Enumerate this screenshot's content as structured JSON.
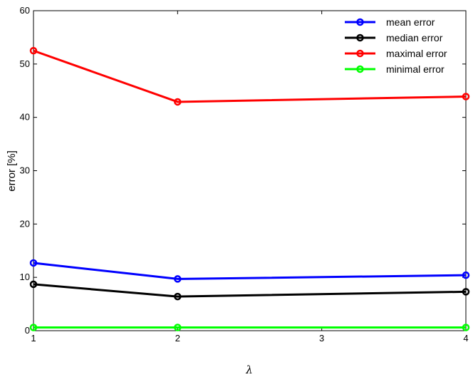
{
  "chart_data": {
    "type": "line",
    "title": "",
    "xlabel": "λ",
    "ylabel": "error [%]",
    "x": [
      1,
      2,
      4
    ],
    "xlim": [
      1,
      4
    ],
    "ylim": [
      0,
      60
    ],
    "xticks": [
      "1",
      "2",
      "3",
      "4"
    ],
    "yticks": [
      "0",
      "10",
      "20",
      "30",
      "40",
      "50",
      "60"
    ],
    "grid": false,
    "legend_position": "top-right",
    "marker": "circle",
    "series": [
      {
        "name": "mean error",
        "color": "#0000ff",
        "values": [
          12.7,
          9.7,
          10.4
        ]
      },
      {
        "name": "median error",
        "color": "#000000",
        "values": [
          8.7,
          6.4,
          7.3
        ]
      },
      {
        "name": "maximal error",
        "color": "#ff0000",
        "values": [
          52.5,
          42.9,
          43.9
        ]
      },
      {
        "name": "minimal error",
        "color": "#00ff00",
        "values": [
          0.6,
          0.6,
          0.6
        ]
      }
    ]
  }
}
